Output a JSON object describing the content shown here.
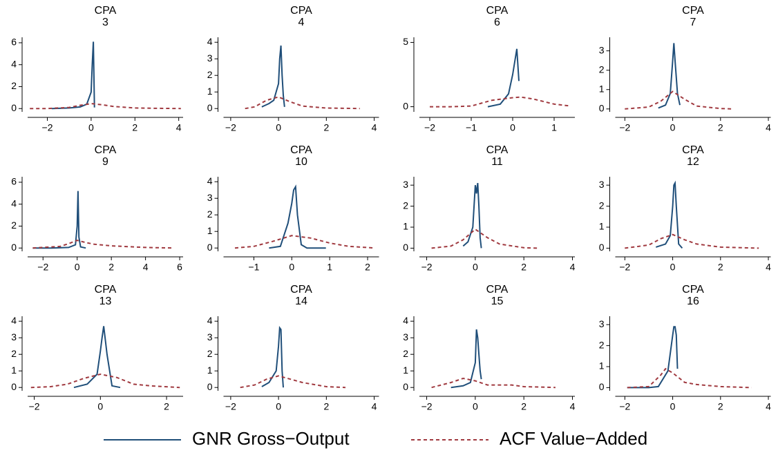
{
  "legend": {
    "series": [
      {
        "name": "GNR Gross−Output",
        "color": "#1f4e79",
        "line_style": "solid"
      },
      {
        "name": "ACF Value−Added",
        "color": "#a0393f",
        "line_style": "dashed"
      }
    ]
  },
  "chart_data": [
    {
      "type": "line",
      "title": "CPA",
      "subtitle": "3",
      "xlim": [
        -2.9,
        4.2
      ],
      "ylim": [
        -0.3,
        6.5
      ],
      "xticks": [
        {
          "value": -2,
          "label": "−2"
        },
        0,
        2,
        4
      ],
      "yticks": [
        0,
        2,
        4,
        6
      ],
      "series": [
        {
          "x": [
            -1.8,
            -1,
            -0.5,
            -0.2,
            0,
            0.05,
            0.1,
            0.15
          ],
          "values": [
            0,
            0.05,
            0.15,
            0.4,
            1.5,
            4,
            6.1,
            0.1
          ]
        },
        {
          "x": [
            -2.8,
            -2,
            -1,
            -0.5,
            0,
            0.5,
            1,
            2,
            3,
            4.1
          ],
          "values": [
            0,
            0,
            0.1,
            0.3,
            0.45,
            0.35,
            0.2,
            0.05,
            0.02,
            0
          ]
        }
      ]
    },
    {
      "type": "line",
      "title": "CPA",
      "subtitle": "4",
      "xlim": [
        -2.3,
        4.2
      ],
      "ylim": [
        -0.2,
        4.3
      ],
      "xticks": [
        {
          "value": -2,
          "label": "−2"
        },
        0,
        2,
        4
      ],
      "yticks": [
        0,
        1,
        2,
        3,
        4
      ],
      "series": [
        {
          "x": [
            -0.7,
            -0.4,
            -0.2,
            0,
            0.05,
            0.1,
            0.15,
            0.2,
            0.25
          ],
          "values": [
            0.1,
            0.3,
            0.5,
            1.5,
            3,
            3.8,
            2,
            0.8,
            0.1
          ]
        },
        {
          "x": [
            -1.4,
            -1,
            -0.5,
            0,
            0.5,
            1,
            2,
            3.4
          ],
          "values": [
            0,
            0.1,
            0.5,
            0.7,
            0.4,
            0.15,
            0.03,
            0
          ]
        }
      ]
    },
    {
      "type": "line",
      "title": "CPA",
      "subtitle": "6",
      "xlim": [
        -2.25,
        1.5
      ],
      "ylim": [
        -0.4,
        5.4
      ],
      "xticks": [
        {
          "value": -2,
          "label": "−2"
        },
        {
          "value": -1,
          "label": "−1"
        },
        0,
        1
      ],
      "yticks": [
        0,
        5
      ],
      "series": [
        {
          "x": [
            -0.6,
            -0.3,
            -0.1,
            0,
            0.05,
            0.1,
            0.15
          ],
          "values": [
            0,
            0.2,
            1,
            2.5,
            3.5,
            4.5,
            2
          ]
        },
        {
          "x": [
            -2,
            -1.5,
            -1,
            -0.5,
            0,
            0.2,
            0.5,
            1,
            1.4
          ],
          "values": [
            0,
            0,
            0.05,
            0.5,
            0.7,
            0.75,
            0.6,
            0.2,
            0.05
          ]
        }
      ]
    },
    {
      "type": "line",
      "title": "CPA",
      "subtitle": "7",
      "xlim": [
        -2.4,
        4.1
      ],
      "ylim": [
        -0.15,
        3.7
      ],
      "xticks": [
        {
          "value": -2,
          "label": "−2"
        },
        0,
        2,
        4
      ],
      "yticks": [
        0,
        1,
        2,
        3
      ],
      "series": [
        {
          "x": [
            -0.6,
            -0.3,
            -0.1,
            0,
            0.05,
            0.1,
            0.2,
            0.3
          ],
          "values": [
            0.05,
            0.2,
            0.8,
            2.5,
            3.4,
            2.5,
            0.8,
            0.2
          ]
        },
        {
          "x": [
            -2,
            -1,
            -0.5,
            0,
            0.5,
            1,
            2,
            2.5
          ],
          "values": [
            0,
            0.1,
            0.4,
            0.9,
            0.5,
            0.15,
            0.02,
            0
          ]
        }
      ]
    },
    {
      "type": "line",
      "title": "CPA",
      "subtitle": "9",
      "xlim": [
        -2.9,
        6.2
      ],
      "ylim": [
        -0.3,
        6.5
      ],
      "xticks": [
        {
          "value": -2,
          "label": "−2"
        },
        0,
        2,
        4,
        6
      ],
      "yticks": [
        0,
        2,
        4,
        6
      ],
      "series": [
        {
          "x": [
            -2.6,
            -1.5,
            -0.5,
            -0.1,
            0,
            0.05,
            0.1,
            0.2,
            0.5
          ],
          "values": [
            0,
            0,
            0.05,
            0.3,
            2,
            5.2,
            1,
            0.1,
            0
          ]
        },
        {
          "x": [
            -2.6,
            -1,
            -0.5,
            0,
            0.5,
            1,
            2,
            4,
            5.6
          ],
          "values": [
            0,
            0.15,
            0.4,
            0.7,
            0.5,
            0.35,
            0.2,
            0.05,
            0
          ]
        }
      ]
    },
    {
      "type": "line",
      "title": "CPA",
      "subtitle": "10",
      "xlim": [
        -1.8,
        2.3
      ],
      "ylim": [
        -0.2,
        4.3
      ],
      "xticks": [
        {
          "value": -1,
          "label": "−1"
        },
        0,
        1,
        2
      ],
      "yticks": [
        0,
        1,
        2,
        3,
        4
      ],
      "series": [
        {
          "x": [
            -0.6,
            -0.3,
            -0.1,
            0,
            0.05,
            0.1,
            0.15,
            0.25,
            0.4,
            0.9
          ],
          "values": [
            0,
            0.1,
            1.5,
            2.7,
            3.5,
            3.7,
            2,
            0.2,
            0,
            0
          ]
        },
        {
          "x": [
            -1.5,
            -1,
            -0.5,
            0,
            0.5,
            1,
            1.5,
            2.2
          ],
          "values": [
            0,
            0.1,
            0.4,
            0.75,
            0.6,
            0.3,
            0.1,
            0
          ]
        }
      ]
    },
    {
      "type": "line",
      "title": "CPA",
      "subtitle": "11",
      "xlim": [
        -2.3,
        4.1
      ],
      "ylim": [
        -0.15,
        3.4
      ],
      "xticks": [
        {
          "value": -2,
          "label": "−2"
        },
        0,
        2,
        4
      ],
      "yticks": [
        0,
        1,
        2,
        3
      ],
      "series": [
        {
          "x": [
            -0.5,
            -0.3,
            -0.1,
            0,
            0.05,
            0.1,
            0.15,
            0.2,
            0.25
          ],
          "values": [
            0.1,
            0.3,
            1,
            3,
            2.6,
            3.1,
            2,
            0.5,
            0
          ]
        },
        {
          "x": [
            -1.8,
            -1,
            -0.5,
            0,
            0.5,
            1,
            2,
            2.6
          ],
          "values": [
            0,
            0.1,
            0.4,
            0.9,
            0.5,
            0.2,
            0.02,
            0
          ]
        }
      ]
    },
    {
      "type": "line",
      "title": "CPA",
      "subtitle": "12",
      "xlim": [
        -2.4,
        4.1
      ],
      "ylim": [
        -0.15,
        3.4
      ],
      "xticks": [
        {
          "value": -2,
          "label": "−2"
        },
        0,
        2,
        4
      ],
      "yticks": [
        0,
        1,
        2,
        3
      ],
      "series": [
        {
          "x": [
            -0.7,
            -0.3,
            -0.1,
            0,
            0.05,
            0.1,
            0.15,
            0.25,
            0.4
          ],
          "values": [
            0.05,
            0.2,
            0.6,
            2,
            3,
            3.1,
            2,
            0.2,
            0
          ]
        },
        {
          "x": [
            -2,
            -1,
            -0.5,
            0,
            0.5,
            1,
            2,
            3.6
          ],
          "values": [
            0,
            0.15,
            0.45,
            0.65,
            0.4,
            0.2,
            0.05,
            0
          ]
        }
      ]
    },
    {
      "type": "line",
      "title": "CPA",
      "subtitle": "13",
      "xlim": [
        -2.2,
        2.5
      ],
      "ylim": [
        -0.2,
        4.3
      ],
      "xticks": [
        {
          "value": -2,
          "label": "−2"
        },
        0,
        2
      ],
      "yticks": [
        0,
        1,
        2,
        3,
        4
      ],
      "series": [
        {
          "x": [
            -0.8,
            -0.4,
            -0.1,
            0,
            0.05,
            0.1,
            0.2,
            0.35,
            0.6
          ],
          "values": [
            0,
            0.2,
            0.8,
            2.2,
            3,
            3.7,
            2,
            0.1,
            0
          ]
        },
        {
          "x": [
            -2.1,
            -1.5,
            -1,
            -0.5,
            0,
            0.5,
            1,
            1.5,
            2.4
          ],
          "values": [
            0,
            0.05,
            0.2,
            0.55,
            0.8,
            0.6,
            0.2,
            0.1,
            0
          ]
        }
      ]
    },
    {
      "type": "line",
      "title": "CPA",
      "subtitle": "14",
      "xlim": [
        -2.3,
        4.2
      ],
      "ylim": [
        -0.2,
        4.3
      ],
      "xticks": [
        {
          "value": -2,
          "label": "−2"
        },
        0,
        2,
        4
      ],
      "yticks": [
        0,
        1,
        2,
        3,
        4
      ],
      "series": [
        {
          "x": [
            -0.7,
            -0.4,
            -0.1,
            0,
            0.05,
            0.1,
            0.15,
            0.2
          ],
          "values": [
            0.05,
            0.3,
            1,
            2.5,
            3.6,
            3.5,
            1,
            0
          ]
        },
        {
          "x": [
            -1.6,
            -1,
            -0.5,
            0,
            0.5,
            1,
            2,
            2.8
          ],
          "values": [
            0,
            0.15,
            0.5,
            0.7,
            0.5,
            0.3,
            0.05,
            0
          ]
        }
      ]
    },
    {
      "type": "line",
      "title": "CPA",
      "subtitle": "15",
      "xlim": [
        -2.3,
        4.1
      ],
      "ylim": [
        -0.2,
        4.3
      ],
      "xticks": [
        {
          "value": -2,
          "label": "−2"
        },
        0,
        2,
        4
      ],
      "yticks": [
        0,
        1,
        2,
        3,
        4
      ],
      "series": [
        {
          "x": [
            -1,
            -0.5,
            -0.2,
            0,
            0.05,
            0.1,
            0.15,
            0.2,
            0.25
          ],
          "values": [
            0,
            0.1,
            0.3,
            1.5,
            3.5,
            3,
            2,
            1,
            0.5
          ]
        },
        {
          "x": [
            -1.8,
            -1,
            -0.5,
            0,
            0.5,
            1,
            1.5,
            2,
            3.3
          ],
          "values": [
            0,
            0.3,
            0.55,
            0.4,
            0.15,
            0.15,
            0.15,
            0.05,
            0
          ]
        }
      ]
    },
    {
      "type": "line",
      "title": "CPA",
      "subtitle": "16",
      "xlim": [
        -2.4,
        4.1
      ],
      "ylim": [
        -0.15,
        3.4
      ],
      "xticks": [
        {
          "value": -2,
          "label": "−2"
        },
        0,
        2,
        4
      ],
      "yticks": [
        0,
        1,
        2,
        3
      ],
      "series": [
        {
          "x": [
            -1.9,
            -1,
            -0.6,
            -0.2,
            0,
            0.05,
            0.1,
            0.15,
            0.2
          ],
          "values": [
            0,
            0,
            0.05,
            0.8,
            2.5,
            2.9,
            2.9,
            2.5,
            0.9
          ]
        },
        {
          "x": [
            -1.9,
            -1,
            -0.5,
            -0.3,
            0,
            0.5,
            1,
            2,
            3.3
          ],
          "values": [
            0,
            0.05,
            0.6,
            0.9,
            0.7,
            0.25,
            0.15,
            0.05,
            0
          ]
        }
      ]
    }
  ]
}
